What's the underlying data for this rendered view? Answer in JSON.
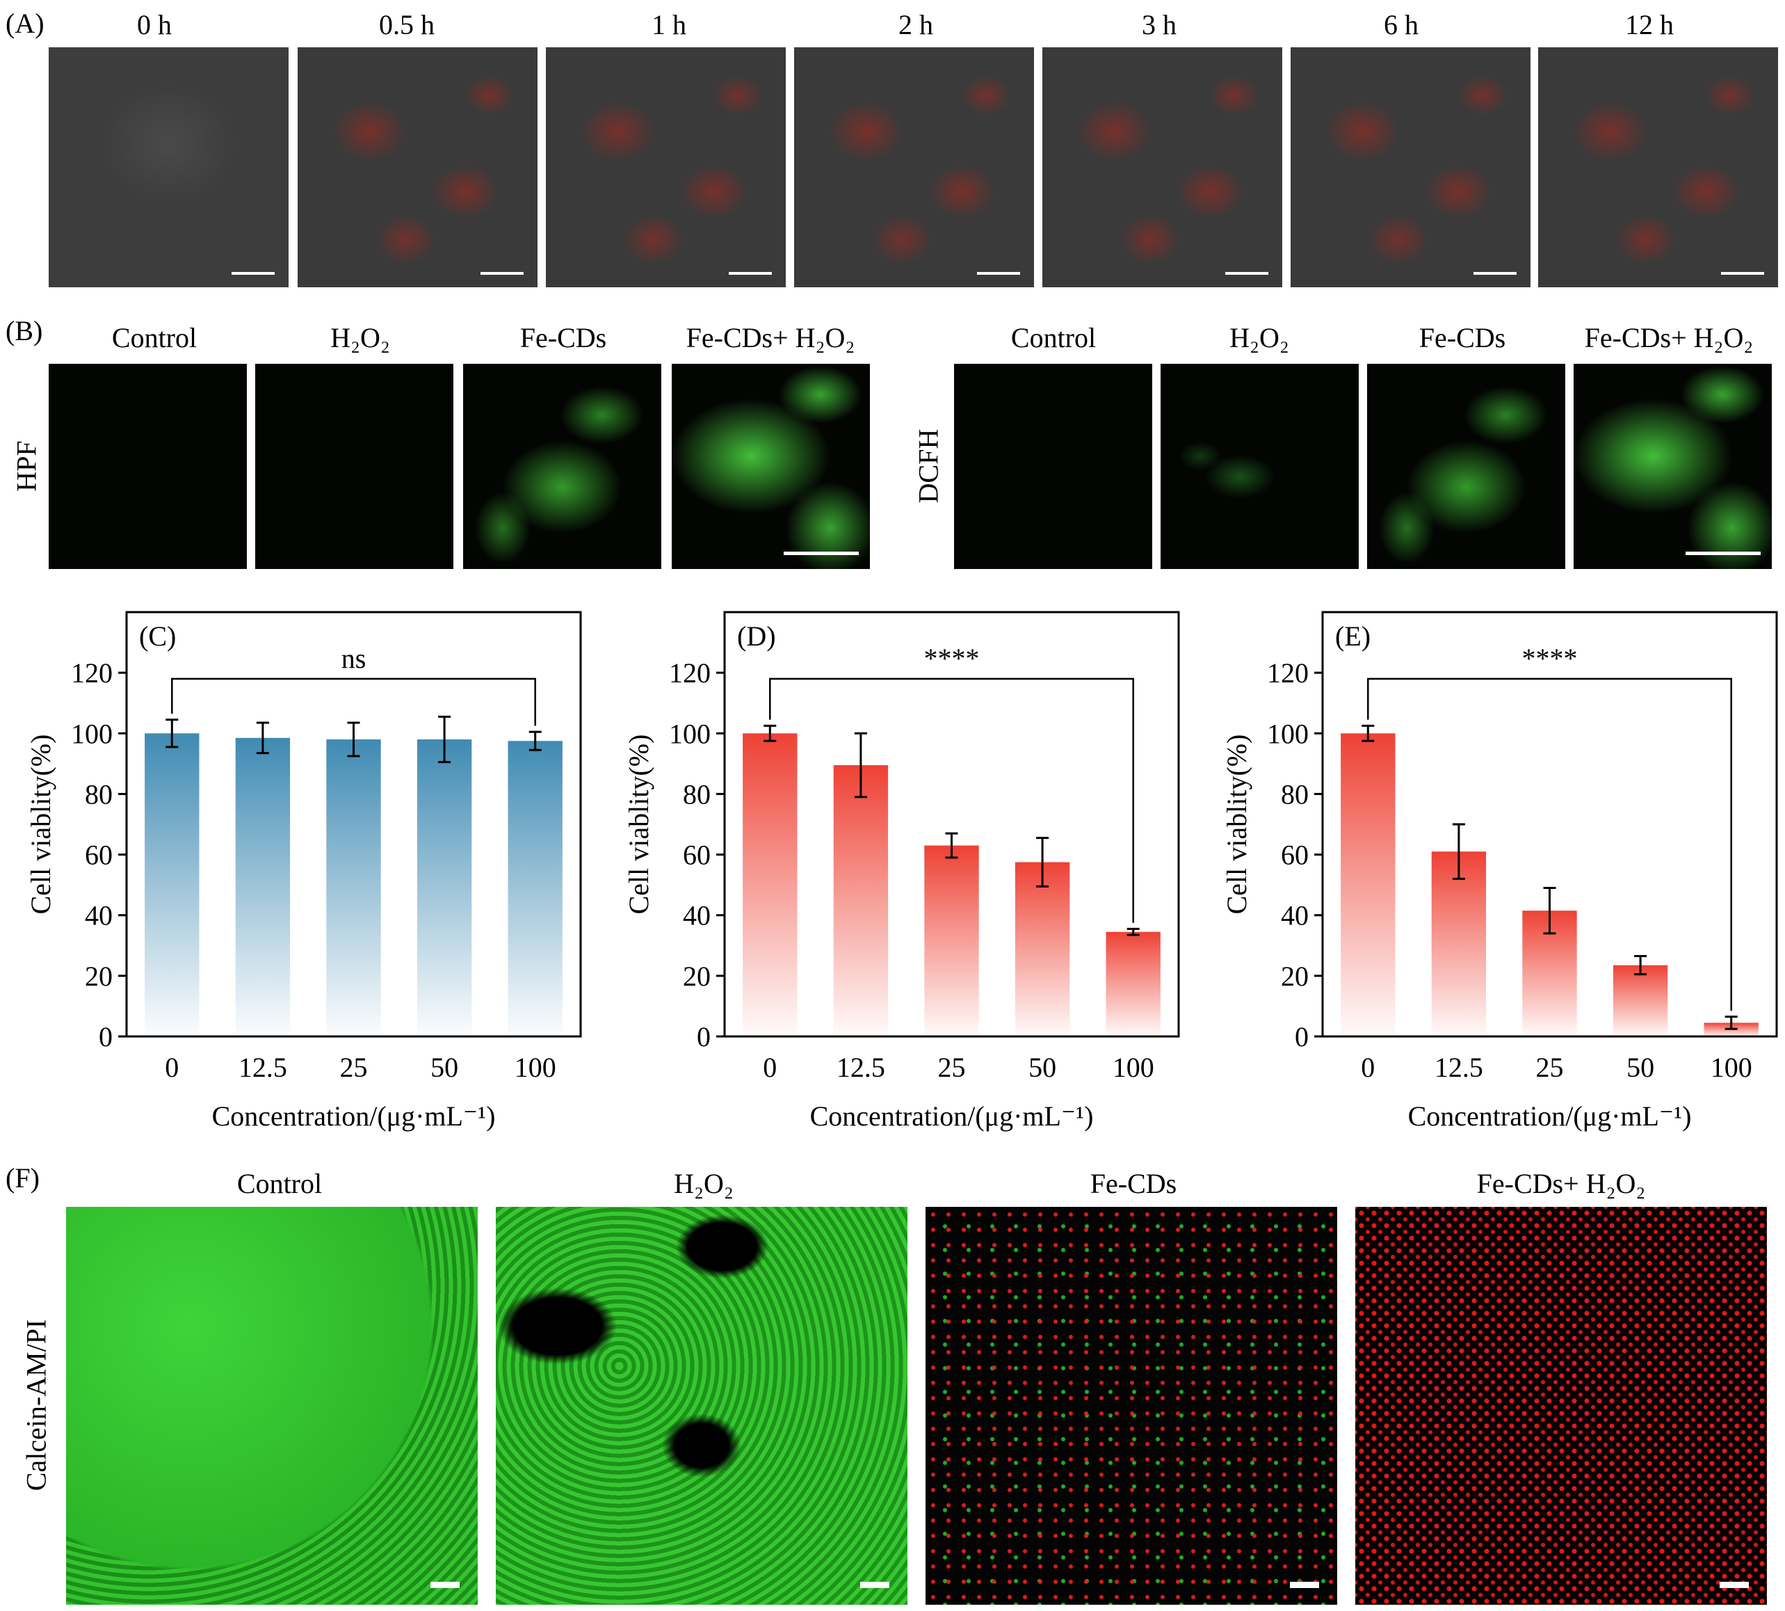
{
  "panels": {
    "A": {
      "label": "(A)",
      "timepoints": [
        "0 h",
        "0.5 h",
        "1 h",
        "2 h",
        "3 h",
        "6 h",
        "12 h"
      ]
    },
    "B": {
      "label": "(B)",
      "groups": [
        "Control",
        "H₂O₂",
        "Fe-CDs",
        "Fe-CDs+ H₂O₂"
      ],
      "probes": [
        "HPF",
        "DCFH"
      ]
    },
    "F": {
      "label": "(F)",
      "groups": [
        "Control",
        "H₂O₂",
        "Fe-CDs",
        "Fe-CDs+ H₂O₂"
      ],
      "stain": "Calcein-AM/PI"
    }
  },
  "chart_data": [
    {
      "type": "bar",
      "panel_label": "(C)",
      "categories": [
        "0",
        "12.5",
        "25",
        "50",
        "100"
      ],
      "values": [
        100,
        98.5,
        98,
        98,
        97.5
      ],
      "errors": [
        4.5,
        5,
        5.5,
        7.5,
        3
      ],
      "xlabel": "Concentration/(μg·mL⁻¹)",
      "ylabel": "Cell viablity(%)",
      "ylim": [
        0,
        140
      ],
      "yticks": [
        0,
        20,
        40,
        60,
        80,
        100,
        120
      ],
      "significance": "ns",
      "color": "#3f8ab3"
    },
    {
      "type": "bar",
      "panel_label": "(D)",
      "categories": [
        "0",
        "12.5",
        "25",
        "50",
        "100"
      ],
      "values": [
        100,
        89.5,
        63,
        57.5,
        34.5
      ],
      "errors": [
        2.5,
        10.5,
        4,
        8,
        1
      ],
      "xlabel": "Concentration/(μg·mL⁻¹)",
      "ylabel": "Cell viablity(%)",
      "ylim": [
        0,
        140
      ],
      "yticks": [
        0,
        20,
        40,
        60,
        80,
        100,
        120
      ],
      "significance": "****",
      "color": "#ee4134"
    },
    {
      "type": "bar",
      "panel_label": "(E)",
      "categories": [
        "0",
        "12.5",
        "25",
        "50",
        "100"
      ],
      "values": [
        100,
        61,
        41.5,
        23.5,
        4.5
      ],
      "errors": [
        2.5,
        9,
        7.5,
        3,
        2
      ],
      "xlabel": "Concentration/(μg·mL⁻¹)",
      "ylabel": "Cell viablity(%)",
      "ylim": [
        0,
        140
      ],
      "yticks": [
        0,
        20,
        40,
        60,
        80,
        100,
        120
      ],
      "significance": "****",
      "color": "#ee4134"
    }
  ]
}
